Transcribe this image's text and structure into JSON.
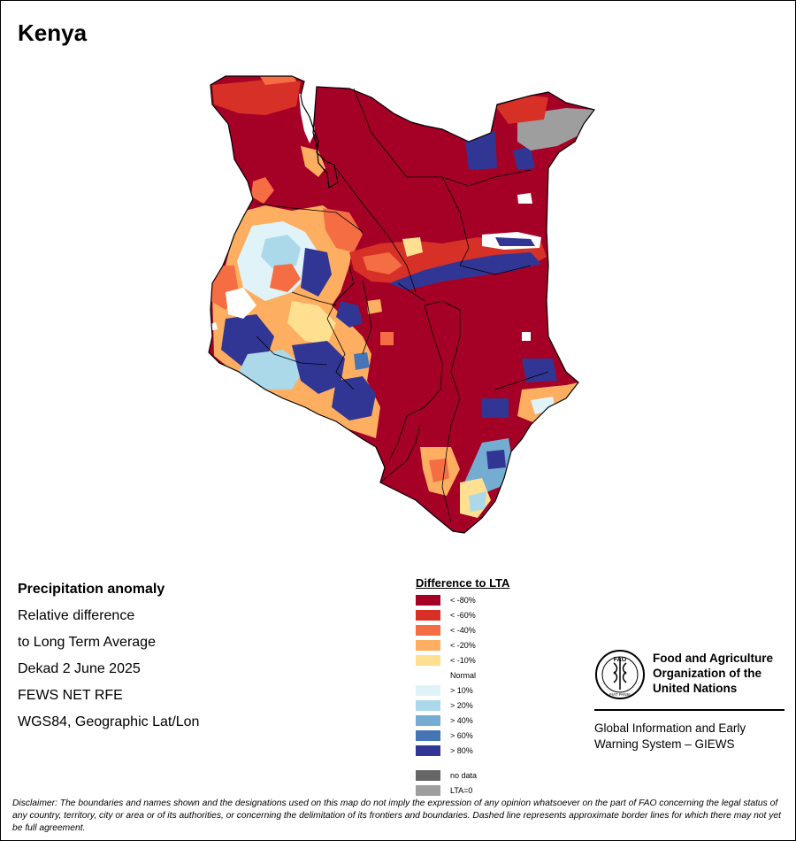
{
  "map": {
    "country_title": "Kenya",
    "colors": {
      "lt80": "#a50026",
      "lt60": "#d73027",
      "lt40": "#f46d43",
      "lt20": "#fdae61",
      "lt10": "#fee090",
      "normal": "#ffffff",
      "gt10": "#e0f3f8",
      "gt20": "#abd9e9",
      "gt40": "#74add1",
      "gt60": "#4575b4",
      "gt80": "#313695",
      "nodata": "#666666",
      "lta0": "#9e9e9e"
    }
  },
  "info": {
    "line1": "Precipitation anomaly",
    "line2": "Relative difference",
    "line3": "to Long Term Average",
    "line4": "Dekad 2 June 2025",
    "line5": "FEWS NET RFE",
    "line6": "WGS84, Geographic Lat/Lon"
  },
  "legend": {
    "title": "Difference to LTA",
    "items": [
      {
        "label": "< -80%",
        "color": "#a50026"
      },
      {
        "label": "< -60%",
        "color": "#d73027"
      },
      {
        "label": "< -40%",
        "color": "#f46d43"
      },
      {
        "label": "< -20%",
        "color": "#fdae61"
      },
      {
        "label": "< -10%",
        "color": "#fee090"
      },
      {
        "label": "Normal",
        "color": "#ffffff"
      },
      {
        "label": "> 10%",
        "color": "#e0f3f8"
      },
      {
        "label": "> 20%",
        "color": "#abd9e9"
      },
      {
        "label": "> 40%",
        "color": "#74add1"
      },
      {
        "label": "> 60%",
        "color": "#4575b4"
      },
      {
        "label": "> 80%",
        "color": "#313695"
      },
      {
        "label": "no data",
        "color": "#666666"
      },
      {
        "label": "LTA=0",
        "color": "#9e9e9e"
      }
    ]
  },
  "org": {
    "logo_text": "FAO",
    "logo_motto": "FIAT PANIS",
    "name_line1": "Food and Agriculture",
    "name_line2": "Organization of the",
    "name_line3": "United Nations",
    "system_line1": "Global Information and Early",
    "system_line2": "Warning System – GIEWS"
  },
  "disclaimer": {
    "text": "Disclaimer: The boundaries and names shown and the designations used on this map do not imply the expression of any opinion whatsoever on the part of FAO concerning the legal status of any country, territory, city or area or of its authorities, or concerning the delimitation of its frontiers and boundaries. Dashed line represents approximate border lines for which there may not yet be full agreement."
  }
}
